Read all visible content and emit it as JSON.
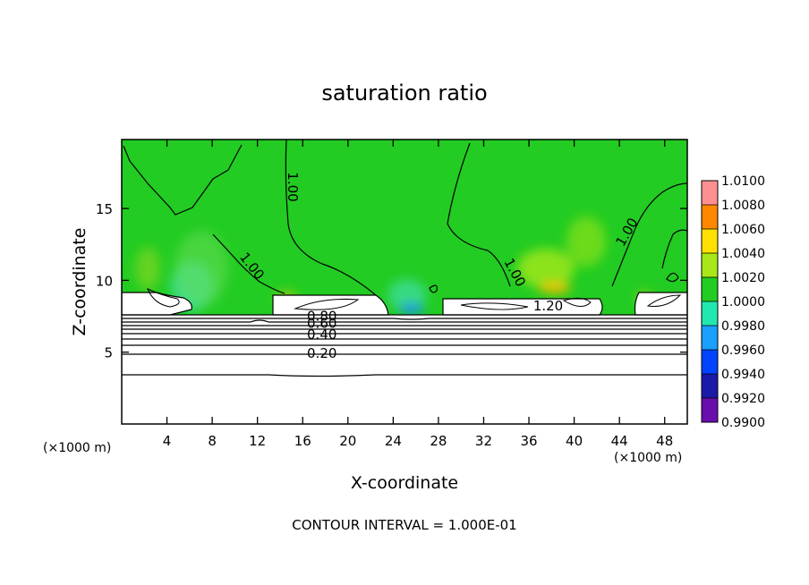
{
  "chart_data": {
    "type": "heatmap",
    "title": "saturation ratio",
    "xlabel": "X-coordinate",
    "ylabel": "Z-coordinate",
    "x_unit_label": "(×1000 m)",
    "x_unit_label_right": "(×1000 m)",
    "xlim": [
      0,
      50
    ],
    "ylim": [
      0,
      19.8
    ],
    "x_ticks": [
      4,
      8,
      12,
      16,
      20,
      24,
      28,
      32,
      36,
      40,
      44,
      48
    ],
    "y_ticks": [
      5,
      10,
      15
    ],
    "footer": "CONTOUR INTERVAL = 1.000E-01",
    "colorbar": {
      "levels": [
        "0.9900",
        "0.9920",
        "0.9940",
        "0.9960",
        "0.9980",
        "1.0000",
        "1.0020",
        "1.0040",
        "1.0060",
        "1.0080",
        "1.0100"
      ],
      "colors": [
        "#6a0dad",
        "#1a1aa8",
        "#0044ff",
        "#1aa0ff",
        "#22e8b0",
        "#22cc22",
        "#a8e818",
        "#ffe000",
        "#ff8800",
        "#ff2200",
        "#ff9090"
      ]
    },
    "contour_labels": [
      {
        "text": "1.00",
        "x": 14.7,
        "z": 16.5,
        "rotate": 90
      },
      {
        "text": "1.00",
        "x": 11.2,
        "z": 10.8,
        "rotate": 52
      },
      {
        "text": "1.00",
        "x": 34.4,
        "z": 10.4,
        "rotate": 62
      },
      {
        "text": "1.00",
        "x": 45.0,
        "z": 13.2,
        "rotate": -60
      },
      {
        "text": "1.20",
        "x": 37.7,
        "z": 7.9,
        "rotate": 0
      },
      {
        "text": "0.80",
        "x": 17.7,
        "z": 7.2,
        "rotate": 0
      },
      {
        "text": "0.60",
        "x": 17.7,
        "z": 6.7,
        "rotate": 0
      },
      {
        "text": "0.40",
        "x": 17.7,
        "z": 5.9,
        "rotate": 0
      },
      {
        "text": "0.20",
        "x": 17.7,
        "z": 4.6,
        "rotate": 0
      }
    ],
    "background_level": "1.0000",
    "grid": false
  }
}
